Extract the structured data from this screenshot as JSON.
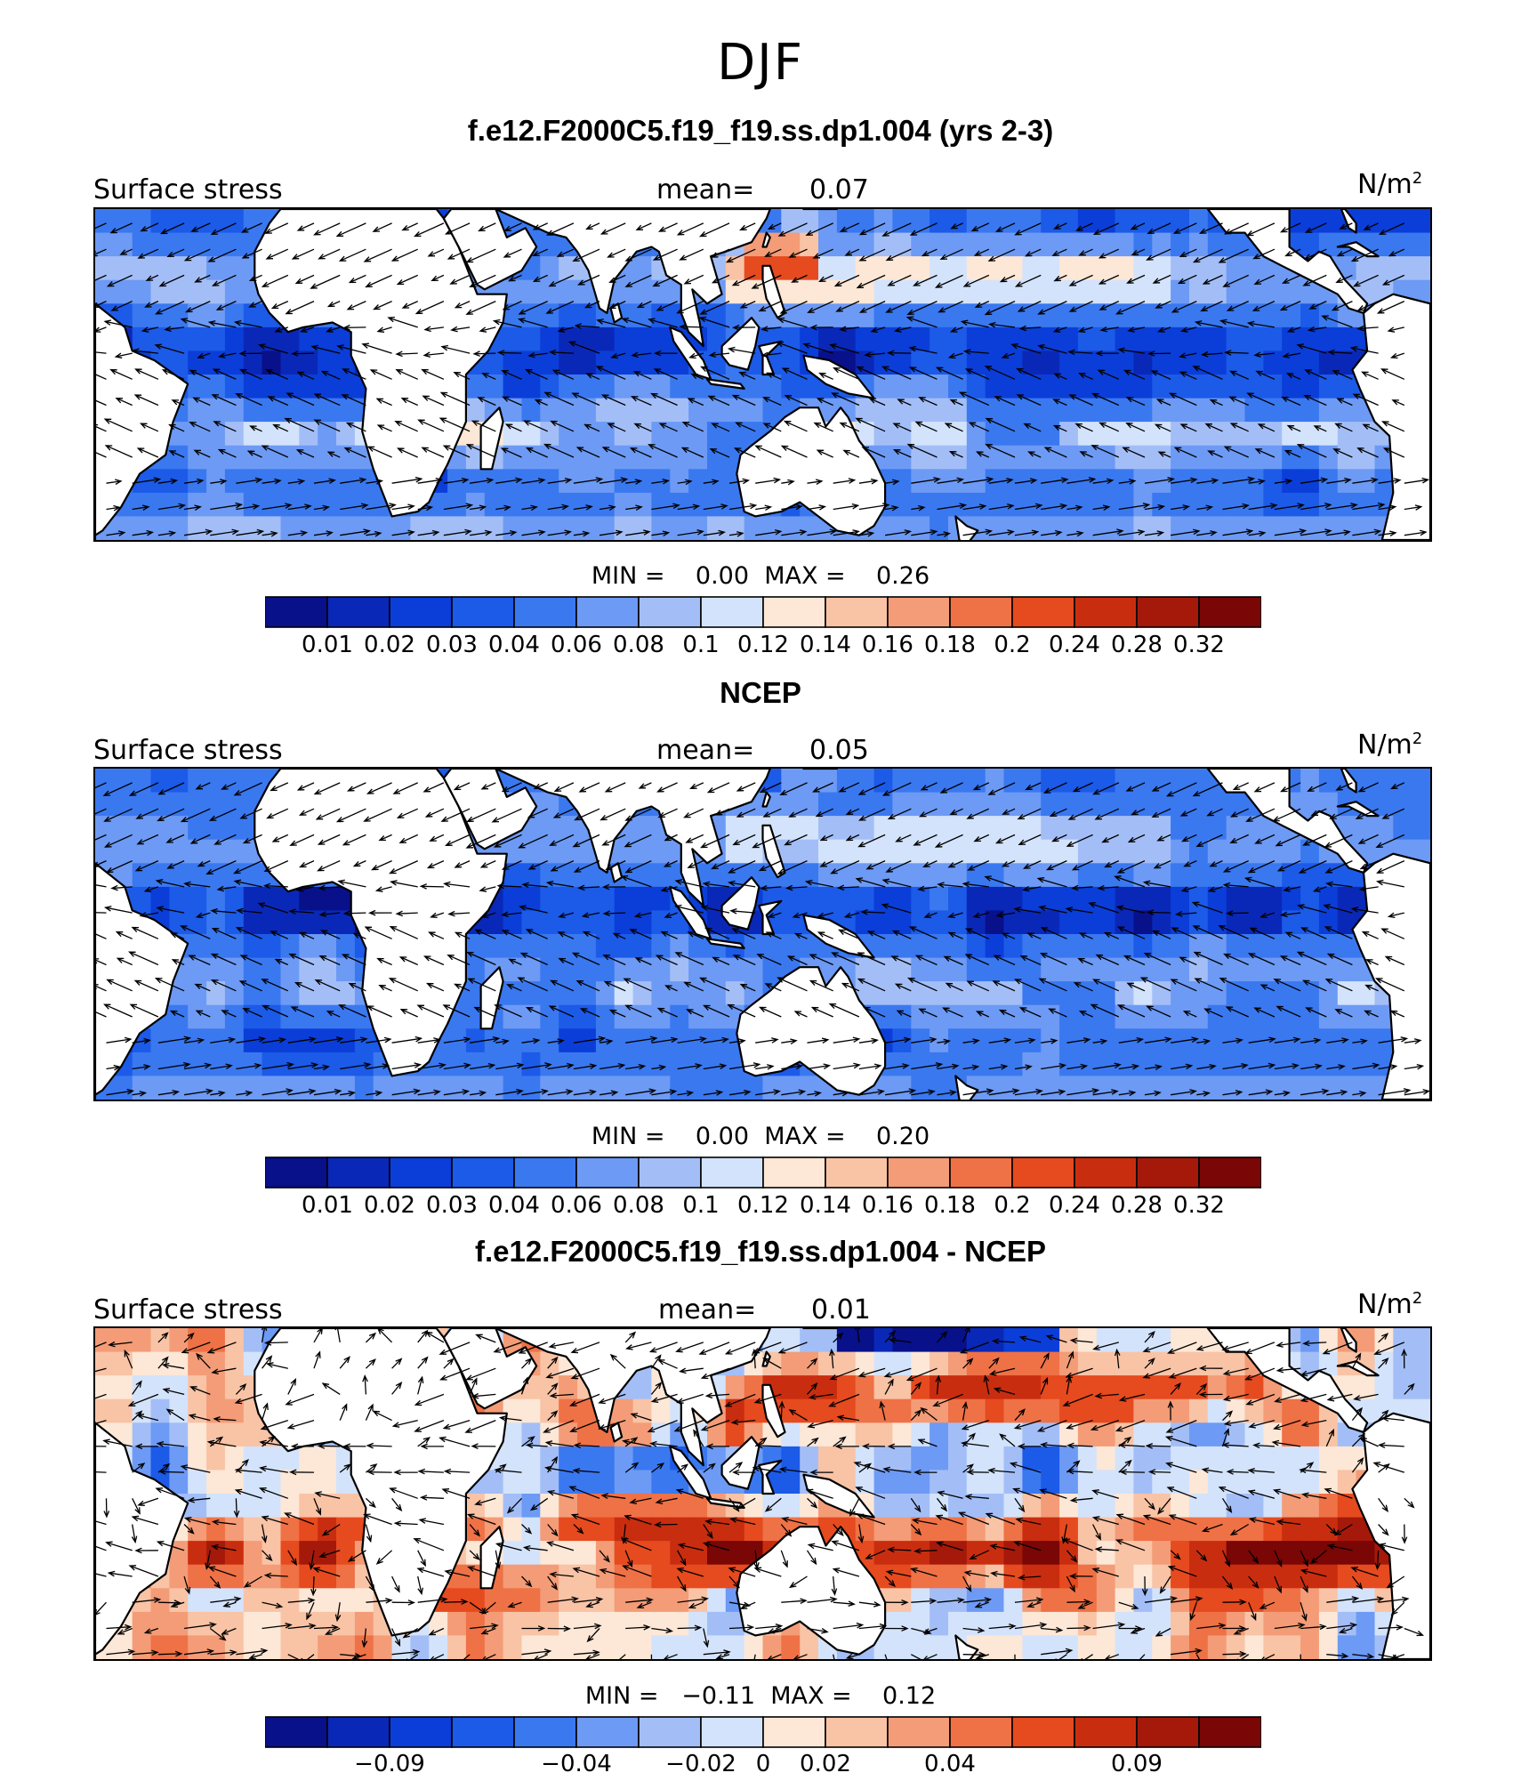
{
  "figure": {
    "season": "DJF",
    "colors_seq": [
      "#08108a",
      "#0a28b8",
      "#0b3ed8",
      "#1c5ae8",
      "#3a78f0",
      "#6d9af4",
      "#a3bef7",
      "#d3e3fb",
      "#fde7d6",
      "#f9c3a6",
      "#f39c77",
      "#ef7146",
      "#e64a1f",
      "#c92d0f",
      "#a5190a",
      "#7a0606"
    ],
    "colors_diff": [
      "#08108a",
      "#0a28b8",
      "#0b3ed8",
      "#1c5ae8",
      "#3a78f0",
      "#6d9af4",
      "#a3bef7",
      "#d3e3fb",
      "#fde7d6",
      "#f9c3a6",
      "#f39c77",
      "#ef7146",
      "#e64a1f",
      "#c92d0f",
      "#a5190a",
      "#7a0606"
    ]
  },
  "panels": [
    {
      "title": "f.e12.F2000C5.f19_f19.ss.dp1.004 (yrs 2-3)",
      "variable": "Surface stress",
      "mean_label": "mean=",
      "mean_value": "0.07",
      "units": "N/m",
      "units_sup": "2",
      "min_label": "MIN =",
      "min_value": "0.00",
      "max_label": "MAX =",
      "max_value": "0.26",
      "ticks": [
        "0.01",
        "0.02",
        "0.03",
        "0.04",
        "0.06",
        "0.08",
        "0.1",
        "0.12",
        "0.14",
        "0.16",
        "0.18",
        "0.2",
        "0.24",
        "0.28",
        "0.32"
      ],
      "field": "model"
    },
    {
      "title": "NCEP",
      "variable": "Surface stress",
      "mean_label": "mean=",
      "mean_value": "0.05",
      "units": "N/m",
      "units_sup": "2",
      "min_label": "MIN =",
      "min_value": "0.00",
      "max_label": "MAX =",
      "max_value": "0.20",
      "ticks": [
        "0.01",
        "0.02",
        "0.03",
        "0.04",
        "0.06",
        "0.08",
        "0.1",
        "0.12",
        "0.14",
        "0.16",
        "0.18",
        "0.2",
        "0.24",
        "0.28",
        "0.32"
      ],
      "field": "obs"
    },
    {
      "title": "f.e12.F2000C5.f19_f19.ss.dp1.004 - NCEP",
      "variable": "Surface stress",
      "mean_label": "mean=",
      "mean_value": "0.01",
      "units": "N/m",
      "units_sup": "2",
      "min_label": "MIN =",
      "min_value": "−0.11",
      "max_label": "MAX =",
      "max_value": "0.12",
      "ticks": [
        "−0.09",
        "−0.04",
        "−0.02",
        "0",
        "0.02",
        "0.04",
        "0.09"
      ],
      "tick_positions": [
        2,
        5,
        7,
        8,
        9,
        11,
        14
      ],
      "field": "diff"
    }
  ]
}
